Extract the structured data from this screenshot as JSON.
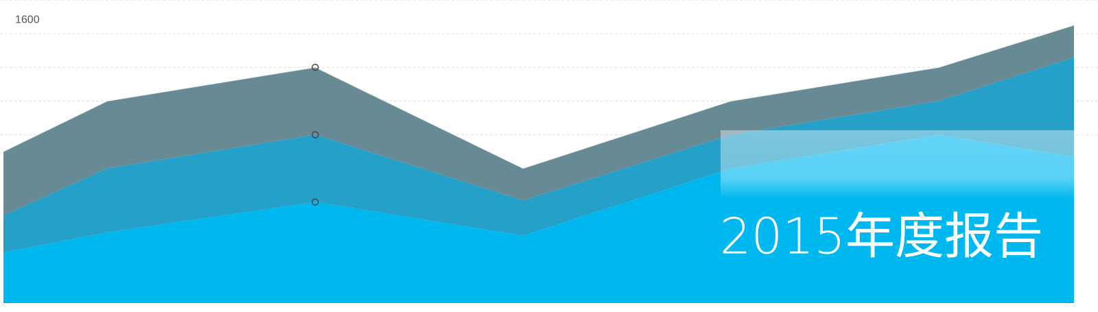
{
  "chart_data": {
    "type": "stacked-area",
    "title": "2015年度报告",
    "x": [
      0,
      1,
      3,
      5,
      7,
      9,
      10.3
    ],
    "xlim": [
      0,
      10.3
    ],
    "ylim": [
      0,
      1800
    ],
    "yticks": [
      {
        "value": 1000,
        "label": null
      },
      {
        "value": 1200,
        "label": null
      },
      {
        "value": 1400,
        "label": null
      },
      {
        "value": 1600,
        "label": "1600"
      },
      {
        "value": 1800,
        "label": null
      }
    ],
    "grid": true,
    "series": [
      {
        "color": "#00b8f0",
        "values": [
          300,
          420,
          600,
          400,
          800,
          1000,
          870
        ]
      },
      {
        "color": "#25a0c8",
        "values": [
          220,
          380,
          400,
          210,
          200,
          200,
          590
        ]
      },
      {
        "color": "#678a94",
        "values": [
          380,
          400,
          400,
          190,
          200,
          200,
          190
        ]
      }
    ]
  }
}
